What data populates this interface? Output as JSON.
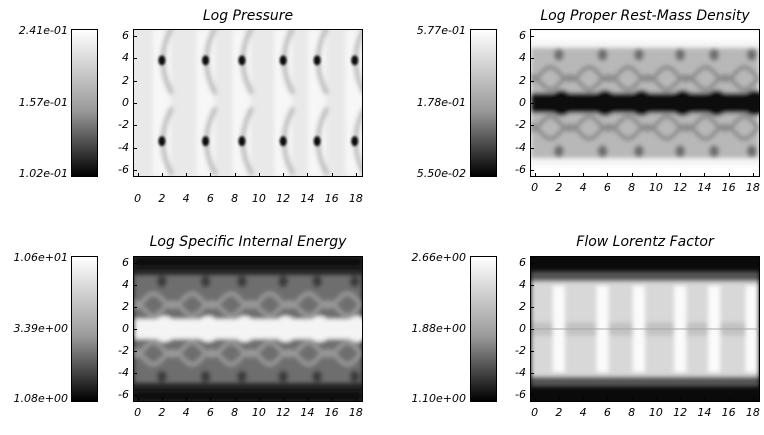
{
  "chart_data": [
    {
      "type": "heatmap",
      "title": "Log Pressure",
      "colorbar": {
        "max": "2.41e-01",
        "mid": "1.57e-01",
        "min": "1.02e-01"
      },
      "colormap": "grayscale",
      "xlim": [
        -0.3,
        18.5
      ],
      "ylim": [
        -6.5,
        6.5
      ],
      "x_ticks": [
        "0",
        "2",
        "4",
        "6",
        "8",
        "10",
        "12",
        "14",
        "16",
        "18"
      ],
      "y_ticks": [
        "6",
        "4",
        "2",
        "0",
        "-2",
        "-4",
        "-6"
      ],
      "pattern": "pressure",
      "show_x_ticks": false
    },
    {
      "type": "heatmap",
      "title": "Log Proper Rest-Mass Density",
      "colorbar": {
        "max": "5.77e-01",
        "mid": "1.78e-01",
        "min": "5.50e-02"
      },
      "colormap": "grayscale",
      "xlim": [
        -0.3,
        18.5
      ],
      "ylim": [
        -6.5,
        6.5
      ],
      "x_ticks": [
        "0",
        "2",
        "4",
        "6",
        "8",
        "10",
        "12",
        "14",
        "16",
        "18"
      ],
      "y_ticks": [
        "6",
        "4",
        "2",
        "0",
        "-2",
        "-4",
        "-6"
      ],
      "pattern": "density",
      "show_x_ticks": true
    },
    {
      "type": "heatmap",
      "title": "Log Specific Internal Energy",
      "colorbar": {
        "max": "1.06e+01",
        "mid": "3.39e+00",
        "min": "1.08e+00"
      },
      "colormap": "grayscale",
      "xlim": [
        -0.3,
        18.5
      ],
      "ylim": [
        -6.5,
        6.5
      ],
      "x_ticks": [
        "0",
        "2",
        "4",
        "6",
        "8",
        "10",
        "12",
        "14",
        "16",
        "18"
      ],
      "y_ticks": [
        "6",
        "4",
        "2",
        "0",
        "-2",
        "-4",
        "-6"
      ],
      "pattern": "energy",
      "show_x_ticks": true
    },
    {
      "type": "heatmap",
      "title": "Flow Lorentz Factor",
      "colorbar": {
        "max": "2.66e+00",
        "mid": "1.88e+00",
        "min": "1.10e+00"
      },
      "colormap": "grayscale",
      "xlim": [
        -0.3,
        18.5
      ],
      "ylim": [
        -6.5,
        6.5
      ],
      "x_ticks": [
        "0",
        "2",
        "4",
        "6",
        "8",
        "10",
        "12",
        "14",
        "16",
        "18"
      ],
      "y_ticks": [
        "6",
        "4",
        "2",
        "0",
        "-2",
        "-4",
        "-6"
      ],
      "pattern": "lorentz",
      "show_x_ticks": true
    }
  ]
}
